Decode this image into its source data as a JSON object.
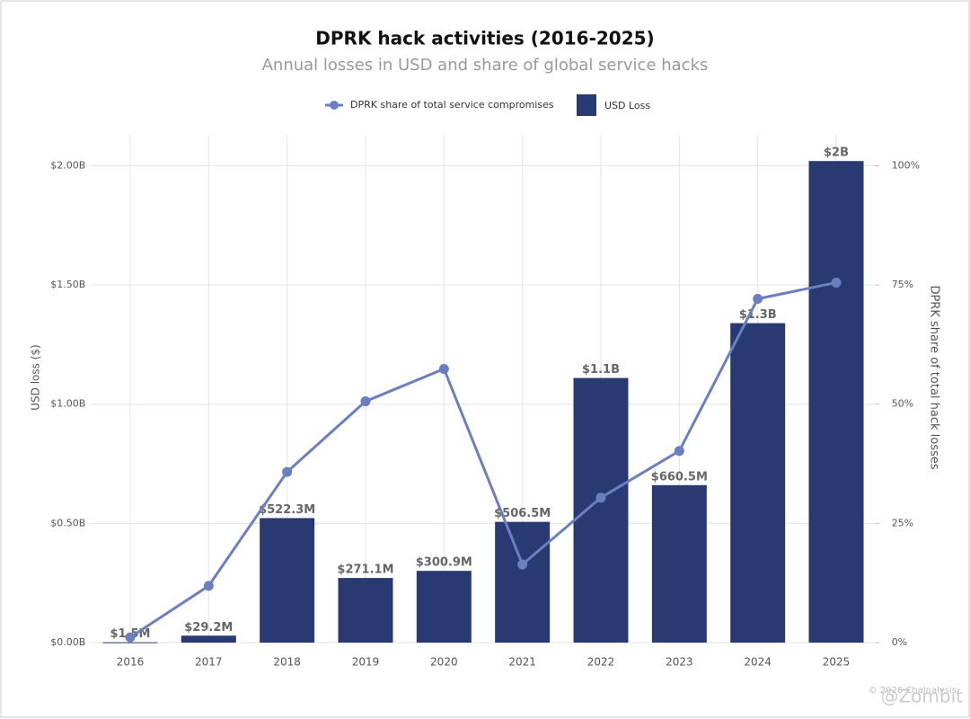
{
  "chart_data": {
    "type": "bar_line",
    "title": "DPRK hack activities (2016-2025)",
    "subtitle": "Annual losses in USD and share of global service hacks",
    "y_label": "USD loss ($)",
    "y2_label": "DPRK share of total hack losses",
    "categories": [
      "2016",
      "2017",
      "2018",
      "2019",
      "2020",
      "2021",
      "2022",
      "2023",
      "2024",
      "2025"
    ],
    "series": [
      {
        "name": "DPRK share of total service compromises",
        "type": "line",
        "axis": "y2",
        "color": "#6b7fc0",
        "values": [
          1.1,
          11.9,
          35.8,
          50.6,
          57.4,
          16.4,
          30.4,
          40.2,
          72.1,
          75.5
        ]
      },
      {
        "name": "USD Loss",
        "type": "bar",
        "color": "#293a72",
        "values": [
          1500000,
          29200000,
          522300000,
          271100000,
          300900000,
          506500000,
          1110000000,
          660500000,
          1340000000,
          2020000000
        ],
        "value_labels": [
          "$1.5M",
          "$29.2M",
          "$522.3M",
          "$271.1M",
          "$300.9M",
          "$506.5M",
          "$1.1B",
          "$660.5M",
          "$1.3B",
          "$2B"
        ]
      }
    ],
    "ylim": [
      0,
      2130000000
    ],
    "yticks": [
      {
        "value": 0,
        "label": "$0.00B"
      },
      {
        "value": 500000000,
        "label": "$0.50B"
      },
      {
        "value": 1000000000,
        "label": "$1.00B"
      },
      {
        "value": 1500000000,
        "label": "$1.50B"
      },
      {
        "value": 2000000000,
        "label": "$2.00B"
      }
    ],
    "y2lim": [
      0,
      106.5
    ],
    "y2ticks": [
      {
        "value": 0,
        "label": "0%"
      },
      {
        "value": 25,
        "label": "25%"
      },
      {
        "value": 50,
        "label": "50%"
      },
      {
        "value": 75,
        "label": "75%"
      },
      {
        "value": 100,
        "label": "100%"
      }
    ],
    "grid": true,
    "legend": "top",
    "watermark": "© 2026 Chainalysis",
    "credit": "@Zombit"
  }
}
